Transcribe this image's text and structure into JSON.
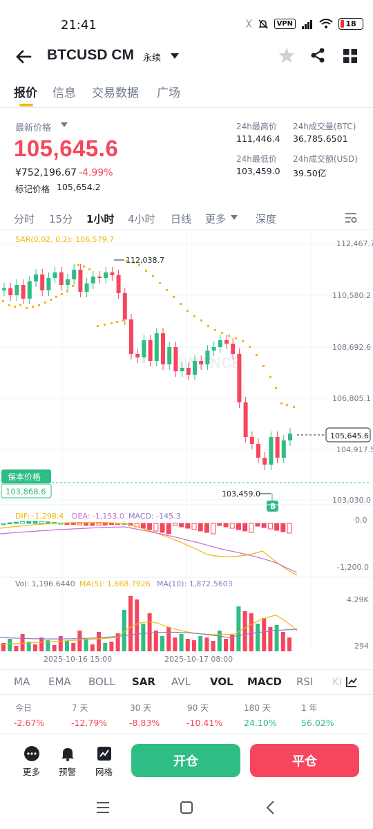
{
  "status": {
    "time": "21:41",
    "vpn": "VPN",
    "battery": "18"
  },
  "header": {
    "pair": "BTCUSD CM",
    "contract_type": "永续"
  },
  "tabs": [
    "报价",
    "信息",
    "交易数据",
    "广场"
  ],
  "price": {
    "last_label": "最新价格",
    "last": "105,645.6",
    "cny": "¥752,196.67",
    "change": "-4.99%",
    "mark_label": "标记价格",
    "mark": "105,654.2"
  },
  "stats": {
    "high_label": "24h最高价",
    "high": "111,446.4",
    "low_label": "24h最低价",
    "low": "103,459.0",
    "vol_btc_label": "24h成交量(BTC)",
    "vol_btc": "36,785.6501",
    "vol_usd_label": "24h成交额(USD)",
    "vol_usd": "39.50亿"
  },
  "intervals": [
    "分时",
    "15分",
    "1小时",
    "4小时",
    "日线",
    "更多",
    "深度"
  ],
  "chart": {
    "sar_legend": "SAR(0.02, 0.2): 106,579.7",
    "price_axis": [
      "112,467.7",
      "110,580.2",
      "108,692.6",
      "106,805.1",
      "104,917.5",
      "103,030.0"
    ],
    "high_marker": "112,038.7",
    "low_marker": "103,459.0",
    "current_tag": "105,645.6",
    "breakeven_label": "保本价格",
    "breakeven_value": "103,868.6",
    "b_marker": "B",
    "watermark": "BINANCE",
    "macd_legend": {
      "dif": "DIF: -1,298.4",
      "dea": "DEA: -1,153.0",
      "macd": "MACD: -145.3"
    },
    "macd_axis": [
      "0.0",
      "-1,200.0"
    ],
    "vol_legend": {
      "vol": "Vol: 1,196.6440",
      "ma5": "MA(5): 1,668.7926",
      "ma10": "MA(10): 1,872.5603"
    },
    "vol_axis": [
      "4.29K",
      "294"
    ],
    "time_axis": [
      "2025-10-16 15:00",
      "2025-10-17 08:00"
    ],
    "colors": {
      "up": "#2ebd85",
      "down": "#f6465d",
      "sar": "#f0b90b",
      "dif": "#f0b90b",
      "dea": "#c76fd1",
      "ma10": "#8e7cc3"
    }
  },
  "indicators": [
    "MA",
    "EMA",
    "BOLL",
    "SAR",
    "AVL",
    "VOL",
    "MACD",
    "RSI",
    "KI"
  ],
  "performance": [
    {
      "label": "今日",
      "value": "-2.67%"
    },
    {
      "label": "7 天",
      "value": "-12.79%"
    },
    {
      "label": "30 天",
      "value": "-8.83%"
    },
    {
      "label": "90 天",
      "value": "-10.41%"
    },
    {
      "label": "180 天",
      "value": "24.10%"
    },
    {
      "label": "1 年",
      "value": "56.02%"
    }
  ],
  "actions": {
    "more": "更多",
    "alert": "预警",
    "grid": "网格",
    "open": "开仓",
    "close": "平仓"
  }
}
